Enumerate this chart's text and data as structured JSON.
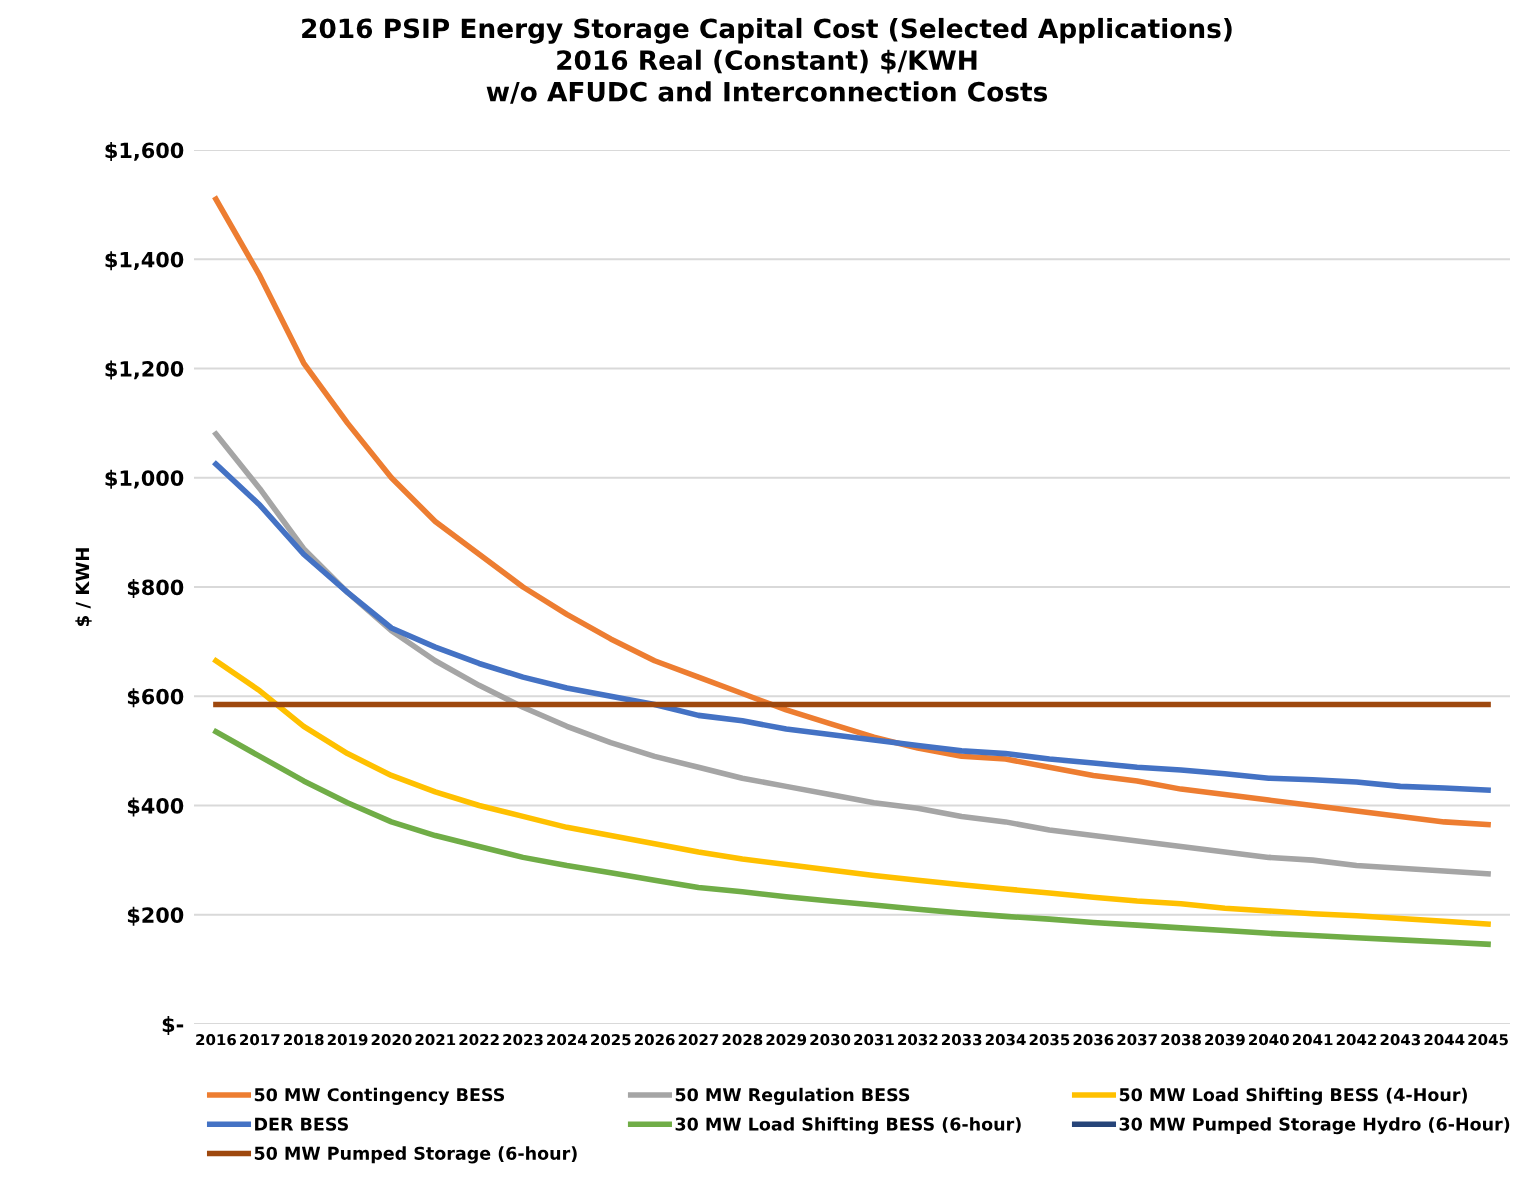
{
  "chart_data": {
    "type": "line",
    "title": "2016 PSIP Energy Storage Capital Cost (Selected Applications)\n2016 Real (Constant) $/KWH\nw/o AFUDC and Interconnection Costs",
    "ylabel": "$ / KWH",
    "categories": [
      "2016",
      "2017",
      "2018",
      "2019",
      "2020",
      "2021",
      "2022",
      "2023",
      "2024",
      "2025",
      "2026",
      "2027",
      "2028",
      "2029",
      "2030",
      "2031",
      "2032",
      "2033",
      "2034",
      "2035",
      "2036",
      "2037",
      "2038",
      "2039",
      "2040",
      "2041",
      "2042",
      "2043",
      "2044",
      "2045"
    ],
    "ylim": [
      0,
      1600
    ],
    "yticks": [
      {
        "value": 0,
        "label": "$-"
      },
      {
        "value": 200,
        "label": "$200"
      },
      {
        "value": 400,
        "label": "$400"
      },
      {
        "value": 600,
        "label": "$600"
      },
      {
        "value": 800,
        "label": "$800"
      },
      {
        "value": 1000,
        "label": "$1,000"
      },
      {
        "value": 1200,
        "label": "$1,200"
      },
      {
        "value": 1400,
        "label": "$1,400"
      },
      {
        "value": 1600,
        "label": "$1,600"
      }
    ],
    "grid": "y",
    "legend": "bottom",
    "marker": "none",
    "line_style": "solid",
    "series": [
      {
        "name": "50 MW Contingency BESS",
        "color": "#ed7d31",
        "values": [
          1510,
          1370,
          1210,
          1100,
          1000,
          920,
          860,
          800,
          750,
          705,
          665,
          635,
          605,
          575,
          550,
          525,
          505,
          490,
          485,
          470,
          455,
          445,
          430,
          420,
          410,
          400,
          390,
          380,
          370,
          365
        ]
      },
      {
        "name": "50 MW Regulation BESS",
        "color": "#a5a5a5",
        "values": [
          1080,
          980,
          870,
          790,
          720,
          665,
          620,
          580,
          545,
          515,
          490,
          470,
          450,
          435,
          420,
          405,
          395,
          380,
          370,
          355,
          345,
          335,
          325,
          315,
          305,
          300,
          290,
          285,
          280,
          275
        ]
      },
      {
        "name": "50 MW Load Shifting BESS (4-Hour)",
        "color": "#ffc000",
        "values": [
          665,
          610,
          545,
          495,
          455,
          425,
          400,
          380,
          360,
          345,
          330,
          315,
          302,
          292,
          282,
          272,
          263,
          255,
          247,
          240,
          232,
          225,
          220,
          212,
          207,
          202,
          198,
          193,
          188,
          183
        ]
      },
      {
        "name": "DER BESS",
        "color": "#4472c4",
        "values": [
          1025,
          950,
          860,
          790,
          725,
          690,
          660,
          635,
          615,
          600,
          585,
          565,
          555,
          540,
          530,
          520,
          510,
          500,
          495,
          485,
          478,
          470,
          465,
          458,
          450,
          447,
          443,
          435,
          432,
          428
        ]
      },
      {
        "name": "30 MW Load Shifting BESS (6-hour)",
        "color": "#70ad47",
        "values": [
          535,
          490,
          445,
          405,
          370,
          345,
          325,
          305,
          290,
          277,
          263,
          250,
          242,
          233,
          225,
          218,
          210,
          203,
          197,
          192,
          186,
          181,
          176,
          171,
          166,
          162,
          158,
          154,
          150,
          146
        ]
      },
      {
        "name": "30 MW Pumped Storage Hydro (6-Hour)",
        "color": "#264478",
        "values": [
          null,
          null,
          null,
          null,
          null,
          null,
          null,
          null,
          null,
          null,
          null,
          null,
          null,
          null,
          null,
          null,
          null,
          null,
          null,
          null,
          null,
          null,
          null,
          null,
          null,
          null,
          null,
          null,
          null,
          null
        ]
      },
      {
        "name": "50 MW Pumped Storage (6-hour)",
        "color": "#9e480e",
        "values": [
          585,
          585,
          585,
          585,
          585,
          585,
          585,
          585,
          585,
          585,
          585,
          585,
          585,
          585,
          585,
          585,
          585,
          585,
          585,
          585,
          585,
          585,
          585,
          585,
          585,
          585,
          585,
          585,
          585,
          585
        ]
      }
    ]
  }
}
